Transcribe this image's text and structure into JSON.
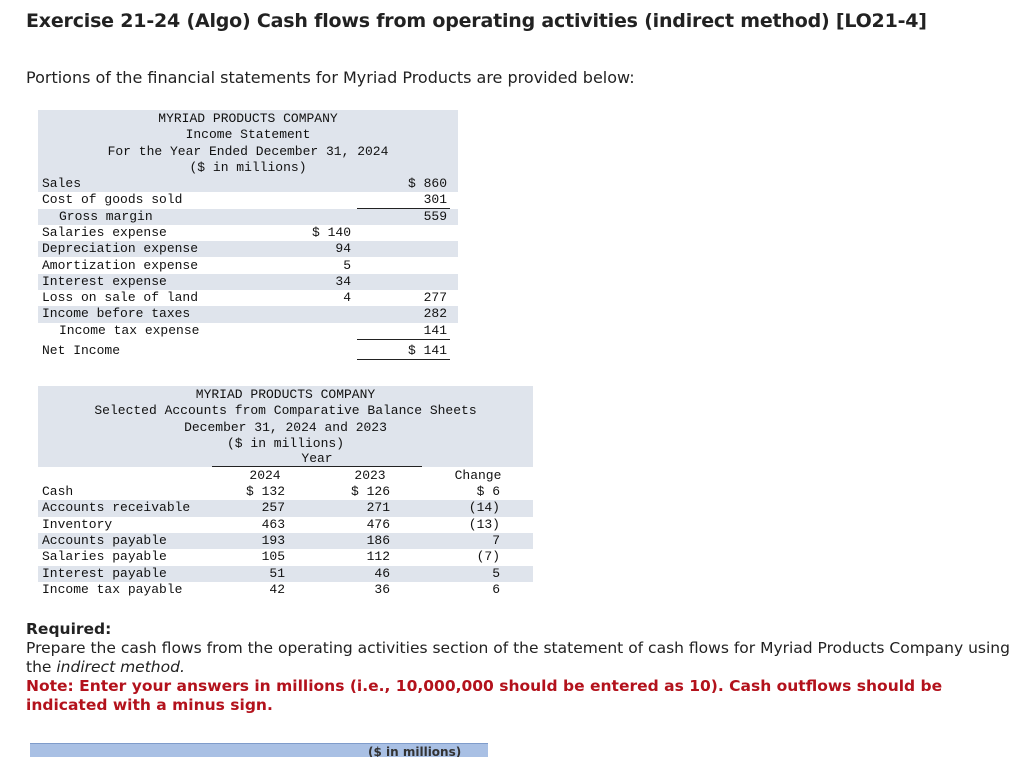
{
  "header": {
    "title": "Exercise 21-24 (Algo) Cash flows from operating activities (indirect method) [LO21-4]"
  },
  "intro": "Portions of the financial statements for Myriad Products are provided below:",
  "income_statement": {
    "heading": [
      "MYRIAD PRODUCTS COMPANY",
      "Income Statement",
      "For the Year Ended December 31, 2024",
      "($ in millions)"
    ],
    "rows": [
      {
        "label": "Sales",
        "col2": "$ 860"
      },
      {
        "label": "Cost of goods sold",
        "col2": "301"
      },
      {
        "label": "Gross margin",
        "col2": "559"
      },
      {
        "label": "Salaries expense",
        "col1": "$ 140"
      },
      {
        "label": "Depreciation expense",
        "col1": "94"
      },
      {
        "label": "Amortization expense",
        "col1": "5"
      },
      {
        "label": "Interest expense",
        "col1": "34"
      },
      {
        "label": "Loss on sale of land",
        "col1": "4",
        "col2": "277"
      },
      {
        "label": "Income before taxes",
        "col2": "282"
      },
      {
        "label": "Income tax expense",
        "col2": "141"
      },
      {
        "label": "Net Income",
        "col2": "$ 141"
      }
    ]
  },
  "balance_sheet": {
    "heading": [
      "MYRIAD PRODUCTS COMPANY",
      "Selected Accounts from Comparative Balance Sheets",
      "December 31, 2024 and 2023",
      "($ in millions)"
    ],
    "year_label": "Year",
    "columns": [
      "2024",
      "2023",
      "Change"
    ],
    "rows": [
      {
        "label": "Cash",
        "values": [
          "$ 132",
          "$ 126",
          "$ 6"
        ]
      },
      {
        "label": "Accounts receivable",
        "values": [
          "257",
          "271",
          "(14)"
        ]
      },
      {
        "label": "Inventory",
        "values": [
          "463",
          "476",
          "(13)"
        ]
      },
      {
        "label": "Accounts payable",
        "values": [
          "193",
          "186",
          "7"
        ]
      },
      {
        "label": "Salaries payable",
        "values": [
          "105",
          "112",
          "(7)"
        ]
      },
      {
        "label": "Interest payable",
        "values": [
          "51",
          "46",
          "5"
        ]
      },
      {
        "label": "Income tax payable",
        "values": [
          "42",
          "36",
          "6"
        ]
      }
    ]
  },
  "required": {
    "heading": "Required:",
    "text": "Prepare the cash flows from the operating activities section of the statement of cash flows for Myriad Products Company using the",
    "emphasis": "indirect method.",
    "note": "Note: Enter your answers in millions (i.e., 10,000,000 should be entered as 10). Cash outflows should be indicated with a minus sign."
  },
  "answer_table": {
    "header": "($ in millions)"
  }
}
